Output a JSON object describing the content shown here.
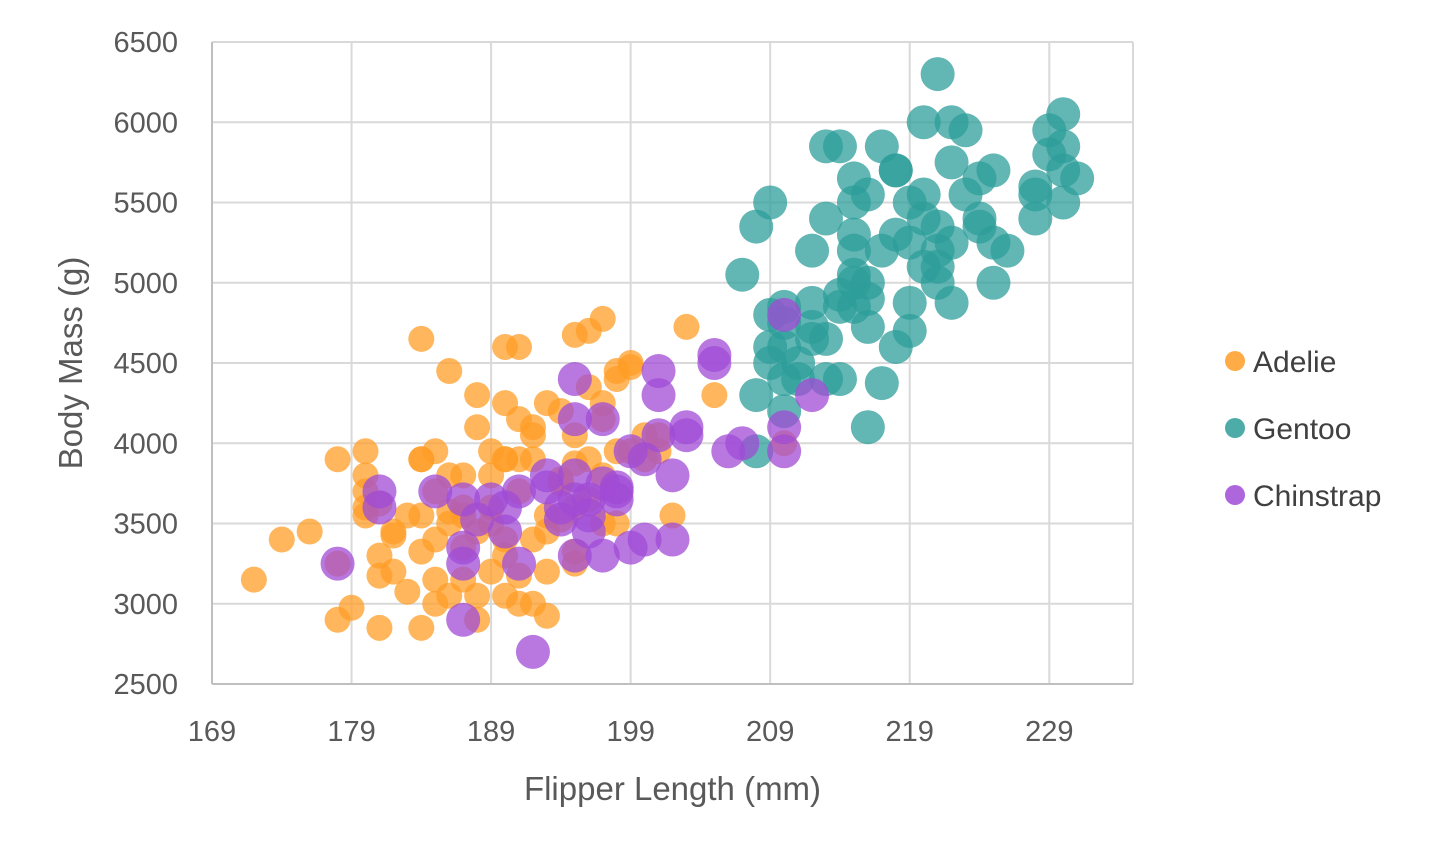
{
  "chart_data": {
    "type": "scatter",
    "title": "",
    "xlabel": "Flipper Length (mm)",
    "ylabel": "Body Mass (g)",
    "xlim": [
      169,
      235
    ],
    "ylim": [
      2500,
      6500
    ],
    "x_ticks": [
      169,
      179,
      189,
      199,
      209,
      219,
      229
    ],
    "y_ticks": [
      2500,
      3000,
      3500,
      4000,
      4500,
      5000,
      5500,
      6000,
      6500
    ],
    "grid": true,
    "legend_position": "right",
    "series": [
      {
        "name": "Adelie",
        "color": "#FF9E27",
        "points": [
          [
            172,
            3150
          ],
          [
            174,
            3400
          ],
          [
            176,
            3450
          ],
          [
            178,
            3900
          ],
          [
            178,
            3250
          ],
          [
            178,
            2900
          ],
          [
            179,
            2975
          ],
          [
            180,
            3950
          ],
          [
            180,
            3800
          ],
          [
            180,
            3550
          ],
          [
            180,
            3600
          ],
          [
            180,
            3700
          ],
          [
            181,
            3300
          ],
          [
            181,
            3175
          ],
          [
            181,
            2850
          ],
          [
            181,
            3625
          ],
          [
            182,
            3200
          ],
          [
            182,
            3450
          ],
          [
            182,
            3425
          ],
          [
            183,
            3075
          ],
          [
            183,
            3550
          ],
          [
            184,
            3900
          ],
          [
            184,
            3325
          ],
          [
            184,
            3900
          ],
          [
            184,
            4650
          ],
          [
            184,
            2850
          ],
          [
            184,
            3550
          ],
          [
            185,
            3700
          ],
          [
            185,
            3150
          ],
          [
            185,
            3950
          ],
          [
            185,
            3000
          ],
          [
            185,
            3400
          ],
          [
            186,
            3800
          ],
          [
            186,
            3050
          ],
          [
            186,
            3500
          ],
          [
            186,
            4450
          ],
          [
            186,
            3575
          ],
          [
            187,
            3800
          ],
          [
            187,
            3600
          ],
          [
            187,
            3350
          ],
          [
            187,
            3150
          ],
          [
            187,
            3550
          ],
          [
            188,
            2900
          ],
          [
            188,
            3450
          ],
          [
            188,
            4300
          ],
          [
            188,
            3050
          ],
          [
            188,
            4100
          ],
          [
            189,
            3200
          ],
          [
            189,
            3500
          ],
          [
            189,
            3950
          ],
          [
            189,
            3600
          ],
          [
            189,
            3800
          ],
          [
            190,
            4250
          ],
          [
            190,
            3900
          ],
          [
            190,
            3050
          ],
          [
            190,
            3400
          ],
          [
            190,
            4600
          ],
          [
            190,
            3300
          ],
          [
            190,
            3900
          ],
          [
            191,
            3000
          ],
          [
            191,
            3175
          ],
          [
            191,
            4600
          ],
          [
            191,
            3700
          ],
          [
            191,
            3900
          ],
          [
            191,
            4150
          ],
          [
            192,
            3400
          ],
          [
            192,
            3000
          ],
          [
            192,
            3900
          ],
          [
            192,
            4050
          ],
          [
            192,
            4100
          ],
          [
            193,
            3550
          ],
          [
            193,
            3450
          ],
          [
            193,
            4250
          ],
          [
            193,
            3200
          ],
          [
            193,
            2925
          ],
          [
            194,
            3750
          ],
          [
            194,
            4200
          ],
          [
            194,
            3775
          ],
          [
            194,
            3525
          ],
          [
            195,
            3325
          ],
          [
            195,
            3250
          ],
          [
            195,
            4050
          ],
          [
            195,
            4675
          ],
          [
            195,
            3875
          ],
          [
            195,
            3600
          ],
          [
            196,
            4350
          ],
          [
            196,
            3900
          ],
          [
            196,
            3650
          ],
          [
            196,
            4700
          ],
          [
            197,
            4250
          ],
          [
            197,
            3800
          ],
          [
            197,
            4150
          ],
          [
            197,
            3500
          ],
          [
            197,
            4775
          ],
          [
            198,
            4450
          ],
          [
            198,
            4400
          ],
          [
            198,
            3950
          ],
          [
            198,
            3500
          ],
          [
            199,
            4500
          ],
          [
            199,
            4475
          ],
          [
            199,
            3950
          ],
          [
            200,
            3900
          ],
          [
            200,
            4050
          ],
          [
            201,
            4050
          ],
          [
            201,
            3950
          ],
          [
            202,
            3550
          ],
          [
            203,
            4725
          ],
          [
            205,
            4300
          ],
          [
            210,
            4000
          ]
        ]
      },
      {
        "name": "Gentoo",
        "color": "#2E9E99",
        "points": [
          [
            207,
            5050
          ],
          [
            208,
            3950
          ],
          [
            208,
            4300
          ],
          [
            208,
            5350
          ],
          [
            209,
            4600
          ],
          [
            209,
            4500
          ],
          [
            209,
            5500
          ],
          [
            209,
            4800
          ],
          [
            210,
            4200
          ],
          [
            210,
            4600
          ],
          [
            210,
            4400
          ],
          [
            210,
            4850
          ],
          [
            210,
            4750
          ],
          [
            211,
            4400
          ],
          [
            211,
            4500
          ],
          [
            212,
            4875
          ],
          [
            212,
            4650
          ],
          [
            212,
            4725
          ],
          [
            212,
            5200
          ],
          [
            213,
            4400
          ],
          [
            213,
            5400
          ],
          [
            213,
            4650
          ],
          [
            213,
            5850
          ],
          [
            214,
            5850
          ],
          [
            214,
            4925
          ],
          [
            214,
            4400
          ],
          [
            214,
            4850
          ],
          [
            215,
            5000
          ],
          [
            215,
            5050
          ],
          [
            215,
            5200
          ],
          [
            215,
            5300
          ],
          [
            215,
            4850
          ],
          [
            215,
            5650
          ],
          [
            215,
            5500
          ],
          [
            216,
            4900
          ],
          [
            216,
            4725
          ],
          [
            216,
            5000
          ],
          [
            216,
            4100
          ],
          [
            216,
            5550
          ],
          [
            217,
            5850
          ],
          [
            217,
            4375
          ],
          [
            217,
            5200
          ],
          [
            218,
            5700
          ],
          [
            218,
            5700
          ],
          [
            218,
            4600
          ],
          [
            218,
            5300
          ],
          [
            219,
            5500
          ],
          [
            219,
            5250
          ],
          [
            219,
            4875
          ],
          [
            219,
            4700
          ],
          [
            220,
            5100
          ],
          [
            220,
            6000
          ],
          [
            220,
            5550
          ],
          [
            220,
            5400
          ],
          [
            221,
            5350
          ],
          [
            221,
            5200
          ],
          [
            221,
            6300
          ],
          [
            221,
            5100
          ],
          [
            221,
            5000
          ],
          [
            222,
            5750
          ],
          [
            222,
            6000
          ],
          [
            222,
            4875
          ],
          [
            222,
            5250
          ],
          [
            223,
            5950
          ],
          [
            223,
            5550
          ],
          [
            224,
            5350
          ],
          [
            224,
            5650
          ],
          [
            224,
            5400
          ],
          [
            225,
            5700
          ],
          [
            225,
            5000
          ],
          [
            225,
            5250
          ],
          [
            226,
            5200
          ],
          [
            228,
            5600
          ],
          [
            228,
            5400
          ],
          [
            228,
            5550
          ],
          [
            229,
            5950
          ],
          [
            229,
            5800
          ],
          [
            230,
            6050
          ],
          [
            230,
            5700
          ],
          [
            230,
            5500
          ],
          [
            230,
            5850
          ],
          [
            231,
            5650
          ]
        ]
      },
      {
        "name": "Chinstrap",
        "color": "#A04BD6",
        "points": [
          [
            178,
            3250
          ],
          [
            181,
            3700
          ],
          [
            181,
            3600
          ],
          [
            185,
            3700
          ],
          [
            187,
            3650
          ],
          [
            187,
            3350
          ],
          [
            187,
            3250
          ],
          [
            187,
            2900
          ],
          [
            188,
            3525
          ],
          [
            189,
            3650
          ],
          [
            190,
            3450
          ],
          [
            190,
            3600
          ],
          [
            191,
            3250
          ],
          [
            191,
            3700
          ],
          [
            192,
            2700
          ],
          [
            193,
            3725
          ],
          [
            193,
            3800
          ],
          [
            194,
            3525
          ],
          [
            194,
            3600
          ],
          [
            195,
            4400
          ],
          [
            195,
            3300
          ],
          [
            195,
            3650
          ],
          [
            195,
            4150
          ],
          [
            195,
            3800
          ],
          [
            196,
            3550
          ],
          [
            196,
            3650
          ],
          [
            196,
            3450
          ],
          [
            197,
            3300
          ],
          [
            197,
            3750
          ],
          [
            197,
            4150
          ],
          [
            198,
            3700
          ],
          [
            198,
            3650
          ],
          [
            198,
            3725
          ],
          [
            199,
            3950
          ],
          [
            199,
            3350
          ],
          [
            200,
            3400
          ],
          [
            200,
            3900
          ],
          [
            201,
            4450
          ],
          [
            201,
            4300
          ],
          [
            201,
            4050
          ],
          [
            202,
            3800
          ],
          [
            202,
            3400
          ],
          [
            203,
            4100
          ],
          [
            203,
            4050
          ],
          [
            205,
            4550
          ],
          [
            205,
            4500
          ],
          [
            206,
            3950
          ],
          [
            207,
            4000
          ],
          [
            210,
            4800
          ],
          [
            210,
            4100
          ],
          [
            210,
            3950
          ],
          [
            212,
            4300
          ]
        ]
      }
    ]
  }
}
